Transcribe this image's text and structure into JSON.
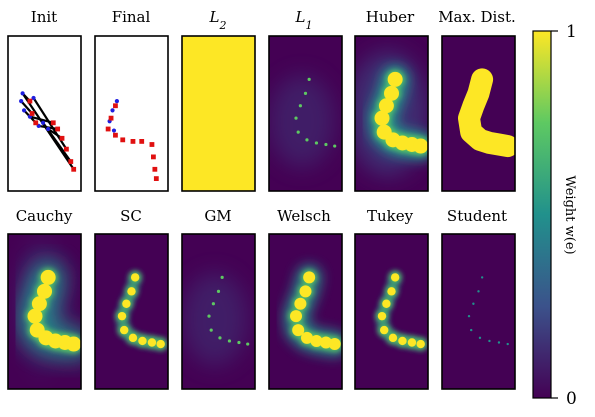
{
  "figure": {
    "row1": {
      "titles": [
        "Init",
        "Final",
        "L2",
        "L1",
        "Huber",
        "Max. Dist."
      ],
      "types": [
        "init",
        "final",
        "full",
        "dots",
        "blur",
        "solid"
      ]
    },
    "row2": {
      "titles": [
        "Cauchy",
        "SC",
        "GM",
        "Welsch",
        "Tukey",
        "Student"
      ],
      "types": [
        "blurbig",
        "medium",
        "dots",
        "glow",
        "medium",
        "tiny"
      ]
    },
    "colorbar": {
      "label": "Weight w(e)",
      "tick_top": "1",
      "tick_bottom": "0",
      "colors": {
        "low": "#440154",
        "midlow": "#3b528b",
        "mid": "#21918c",
        "midhigh": "#5ec962",
        "high": "#fde725"
      }
    },
    "point_colors": {
      "blue": "#1f1fe0",
      "red": "#e01010",
      "black": "#000000"
    }
  }
}
